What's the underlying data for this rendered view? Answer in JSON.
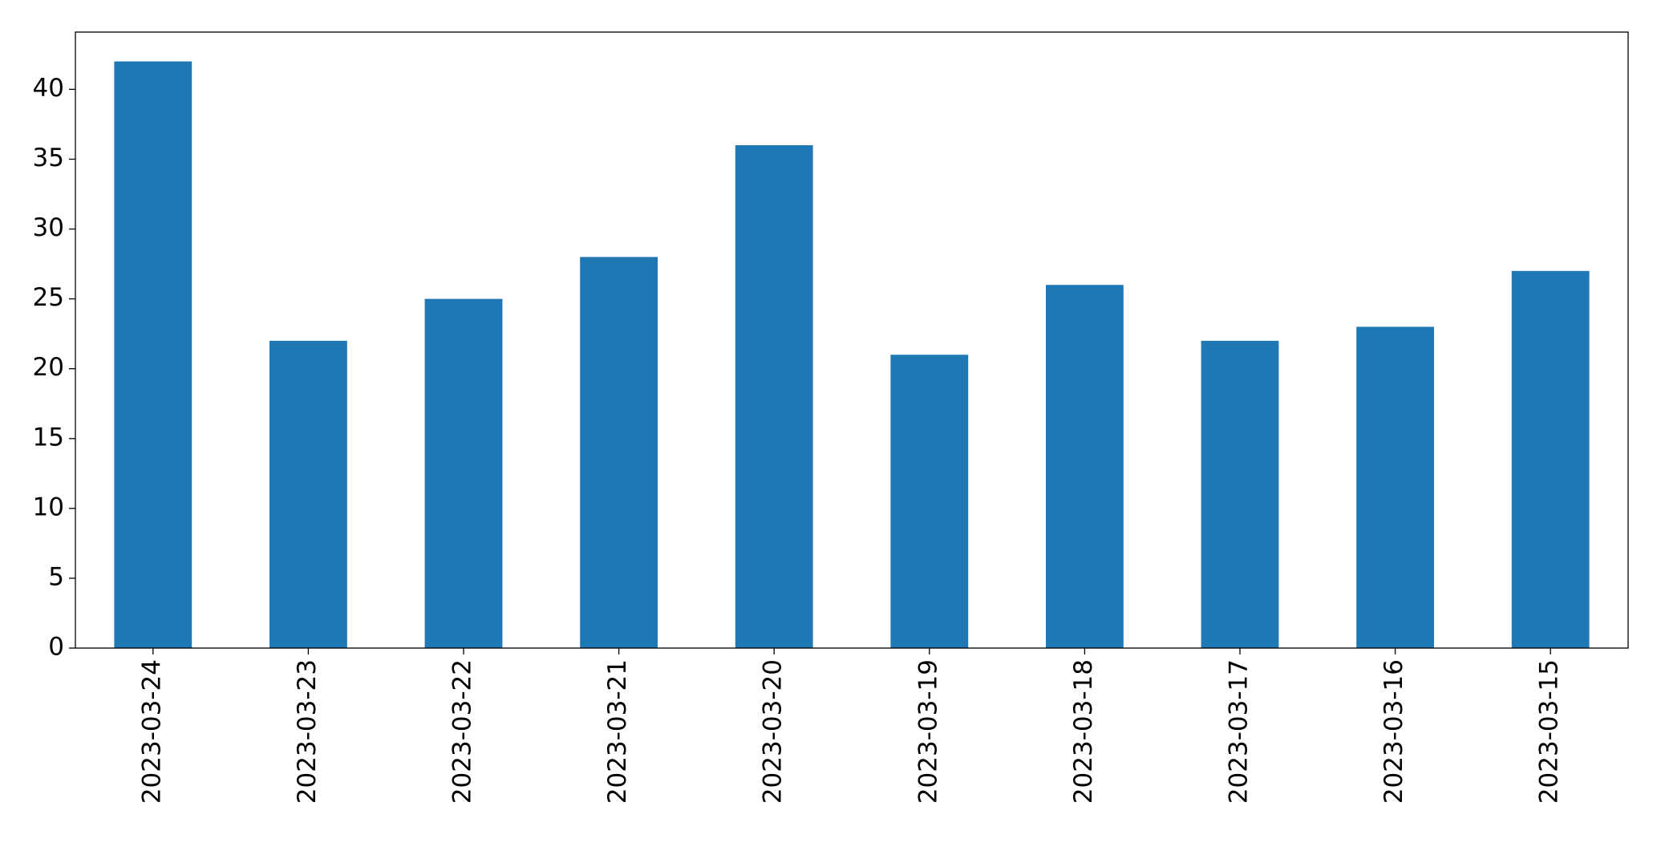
{
  "chart_data": {
    "type": "bar",
    "categories": [
      "2023-03-24",
      "2023-03-23",
      "2023-03-22",
      "2023-03-21",
      "2023-03-20",
      "2023-03-19",
      "2023-03-18",
      "2023-03-17",
      "2023-03-16",
      "2023-03-15"
    ],
    "values": [
      42,
      22,
      25,
      28,
      36,
      21,
      26,
      22,
      23,
      27
    ],
    "color": "#1f77b4",
    "ylim": [
      0,
      44.1
    ],
    "yticks": [
      0,
      5,
      10,
      15,
      20,
      25,
      30,
      35,
      40
    ],
    "grid": false
  }
}
